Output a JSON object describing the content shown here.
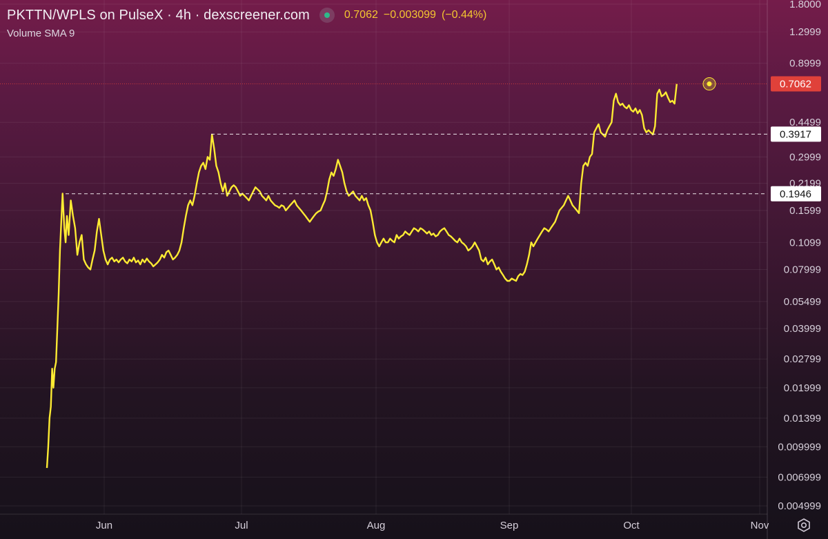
{
  "header": {
    "title": "PKTTN/WPLS on PulseX · 4h · dexscreener.com",
    "price": "0.7062",
    "change": "−0.003099",
    "change_pct": "(−0.44%)",
    "indicator": "Volume SMA 9"
  },
  "colors": {
    "line": "#fdeb33",
    "price_badge": "#e0413a",
    "grid": "rgba(255,255,255,0.07)",
    "status": "#2fb98a"
  },
  "chart_data": {
    "type": "line",
    "series": [
      {
        "values_x_days": [
          0,
          0.3,
          0.6,
          0.9,
          1.2,
          1.5,
          1.8,
          2.1,
          2.4,
          2.7,
          3.0,
          3.3,
          3.6,
          4.0,
          4.3,
          4.6,
          5.0,
          5.5,
          6,
          6.5,
          7,
          7.5,
          8,
          8.5,
          9,
          9.5,
          10,
          10.5,
          11,
          11.5,
          12,
          12.5,
          13,
          13.5,
          14,
          14.5,
          15,
          15.5,
          16,
          16.5,
          17,
          17.5,
          18,
          18.5,
          19,
          19.5,
          20,
          20.5,
          21,
          21.5,
          22,
          22.5,
          23,
          23.5,
          24,
          24.5,
          25,
          25.5,
          26,
          26.5,
          27,
          27.5,
          28,
          28.5,
          29,
          29.5,
          30,
          30.5,
          31,
          31.5,
          32,
          32.5,
          33,
          33.5,
          34,
          34.5,
          35,
          35.5,
          36,
          36.5,
          37,
          37.5,
          38,
          38.5,
          39,
          39.5,
          40,
          40.5,
          41,
          41.5,
          42,
          42.5,
          43,
          43.5,
          44,
          44.5,
          45,
          45.5,
          46,
          46.5,
          47,
          47.5,
          48,
          48.5,
          49,
          49.5,
          50,
          50.5,
          51,
          51.5,
          52,
          52.5,
          53,
          53.5,
          54,
          54.5,
          55,
          55.5,
          56,
          56.5,
          57,
          57.5,
          58,
          58.5,
          59,
          59.5,
          60,
          60.5,
          61,
          61.5,
          62,
          62.5,
          63,
          63.5,
          64,
          64.5,
          65,
          65.5,
          66,
          66.5,
          67,
          67.5,
          68,
          68.5,
          69,
          69.5,
          70,
          70.5,
          71,
          71.5,
          72,
          72.5,
          73,
          73.5,
          74,
          74.5,
          75,
          75.5,
          76,
          76.5,
          77,
          77.5,
          78,
          78.5,
          79,
          79.5,
          80,
          80.5,
          81,
          81.5,
          82,
          82.5,
          83,
          83.5,
          84,
          84.5,
          85,
          85.5,
          86,
          86.5,
          87,
          87.5,
          88,
          88.5,
          89,
          89.5,
          90,
          90.5,
          91,
          91.5,
          92,
          92.5,
          93,
          93.5,
          94,
          94.5,
          95,
          95.5,
          96,
          96.5,
          97,
          97.5,
          98,
          98.5,
          99,
          99.5,
          100,
          100.5,
          101,
          101.5,
          102,
          102.5,
          103,
          103.5,
          104,
          104.5,
          105,
          105.5,
          106,
          106.5,
          107,
          107.5,
          108,
          108.5,
          109,
          109.5,
          110,
          110.5,
          111,
          111.5,
          112,
          112.5,
          113,
          113.5,
          114,
          114.5,
          115,
          115.5,
          116,
          116.5,
          117,
          117.5,
          118,
          118.5,
          119,
          119.5,
          120,
          120.5,
          121,
          121.5,
          122,
          122.5,
          123,
          123.5,
          124,
          124.5,
          125,
          125.5,
          126,
          126.5,
          127,
          127.5,
          128,
          128.5,
          129,
          129.5,
          130,
          130.5,
          131,
          131.5,
          132,
          132.5,
          133,
          133.5,
          134,
          134.5,
          135,
          135.5,
          136,
          136.5,
          137,
          137.5,
          138,
          138.5,
          139,
          139.5,
          140,
          140.5,
          141,
          141.5,
          142,
          142.5,
          143,
          143.5,
          144,
          144.5,
          145,
          145.5,
          146,
          146.5,
          147,
          147.5,
          148,
          148.5,
          149,
          149.5,
          150,
          150.5,
          151,
          151.5,
          152,
          152.5
        ],
        "values": [
          0.0078,
          0.01,
          0.014,
          0.016,
          0.025,
          0.02,
          0.025,
          0.027,
          0.04,
          0.06,
          0.1,
          0.14,
          0.195,
          0.13,
          0.11,
          0.15,
          0.12,
          0.18,
          0.15,
          0.13,
          0.095,
          0.11,
          0.12,
          0.09,
          0.085,
          0.082,
          0.08,
          0.09,
          0.1,
          0.125,
          0.145,
          0.12,
          0.1,
          0.09,
          0.085,
          0.09,
          0.092,
          0.088,
          0.09,
          0.087,
          0.09,
          0.092,
          0.088,
          0.086,
          0.09,
          0.088,
          0.092,
          0.087,
          0.089,
          0.085,
          0.09,
          0.087,
          0.091,
          0.088,
          0.086,
          0.083,
          0.085,
          0.087,
          0.09,
          0.095,
          0.092,
          0.098,
          0.1,
          0.095,
          0.09,
          0.092,
          0.095,
          0.1,
          0.11,
          0.13,
          0.15,
          0.17,
          0.18,
          0.17,
          0.19,
          0.22,
          0.25,
          0.27,
          0.28,
          0.26,
          0.3,
          0.29,
          0.39,
          0.33,
          0.27,
          0.25,
          0.22,
          0.2,
          0.22,
          0.19,
          0.2,
          0.21,
          0.215,
          0.21,
          0.2,
          0.19,
          0.195,
          0.19,
          0.185,
          0.18,
          0.19,
          0.2,
          0.21,
          0.205,
          0.2,
          0.19,
          0.185,
          0.18,
          0.19,
          0.18,
          0.175,
          0.17,
          0.168,
          0.165,
          0.17,
          0.168,
          0.16,
          0.165,
          0.17,
          0.175,
          0.18,
          0.17,
          0.165,
          0.16,
          0.155,
          0.15,
          0.145,
          0.14,
          0.145,
          0.15,
          0.155,
          0.158,
          0.16,
          0.17,
          0.18,
          0.2,
          0.23,
          0.25,
          0.24,
          0.26,
          0.29,
          0.27,
          0.25,
          0.22,
          0.2,
          0.19,
          0.195,
          0.2,
          0.19,
          0.185,
          0.18,
          0.19,
          0.18,
          0.185,
          0.17,
          0.16,
          0.14,
          0.12,
          0.11,
          0.105,
          0.11,
          0.115,
          0.11,
          0.11,
          0.115,
          0.112,
          0.11,
          0.12,
          0.115,
          0.118,
          0.12,
          0.125,
          0.122,
          0.12,
          0.125,
          0.13,
          0.128,
          0.125,
          0.13,
          0.128,
          0.125,
          0.122,
          0.125,
          0.12,
          0.122,
          0.118,
          0.12,
          0.125,
          0.128,
          0.13,
          0.125,
          0.12,
          0.118,
          0.115,
          0.112,
          0.11,
          0.115,
          0.11,
          0.108,
          0.105,
          0.1,
          0.102,
          0.105,
          0.11,
          0.105,
          0.1,
          0.09,
          0.088,
          0.092,
          0.085,
          0.088,
          0.09,
          0.085,
          0.08,
          0.082,
          0.078,
          0.075,
          0.072,
          0.07,
          0.07,
          0.072,
          0.071,
          0.07,
          0.074,
          0.076,
          0.075,
          0.078,
          0.085,
          0.095,
          0.11,
          0.105,
          0.11,
          0.115,
          0.12,
          0.125,
          0.13,
          0.128,
          0.125,
          0.13,
          0.135,
          0.14,
          0.15,
          0.16,
          0.165,
          0.17,
          0.18,
          0.19,
          0.18,
          0.17,
          0.165,
          0.16,
          0.155,
          0.22,
          0.27,
          0.28,
          0.27,
          0.3,
          0.31,
          0.4,
          0.42,
          0.44,
          0.4,
          0.39,
          0.38,
          0.41,
          0.43,
          0.45,
          0.58,
          0.63,
          0.57,
          0.55,
          0.56,
          0.54,
          0.53,
          0.55,
          0.52,
          0.51,
          0.53,
          0.5,
          0.52,
          0.49,
          0.42,
          0.4,
          0.41,
          0.4,
          0.39,
          0.43,
          0.63,
          0.66,
          0.61,
          0.62,
          0.64,
          0.6,
          0.57,
          0.58,
          0.56,
          0.7062
        ]
      }
    ],
    "y_axis": {
      "scale": "log",
      "tick_labels": [
        "1.8000",
        "1.2999",
        "0.8999",
        "0.4499",
        "0.2999",
        "0.2199",
        "0.1599",
        "0.1099",
        "0.07999",
        "0.05499",
        "0.03999",
        "0.02799",
        "0.01999",
        "0.01399",
        "0.009999",
        "0.006999",
        "0.004999"
      ],
      "tick_values": [
        1.8,
        1.2999,
        0.8999,
        0.4499,
        0.2999,
        0.2199,
        0.1599,
        0.1099,
        0.07999,
        0.05499,
        0.03999,
        0.02799,
        0.01999,
        0.01399,
        0.009999,
        0.006999,
        0.004999
      ],
      "range": [
        0.0045,
        2.0
      ]
    },
    "x_axis": {
      "tick_labels": [
        "Jun",
        "Jul",
        "Aug",
        "Sep",
        "Oct",
        "Nov"
      ],
      "tick_days": [
        12,
        42,
        73,
        104,
        134,
        165
      ]
    },
    "markers": [
      {
        "label": "0.7062",
        "value": 0.7062,
        "style": "current-price"
      },
      {
        "label": "0.3917",
        "value": 0.3917,
        "style": "dashed-level"
      },
      {
        "label": "0.1946",
        "value": 0.1946,
        "style": "dashed-level"
      }
    ]
  }
}
